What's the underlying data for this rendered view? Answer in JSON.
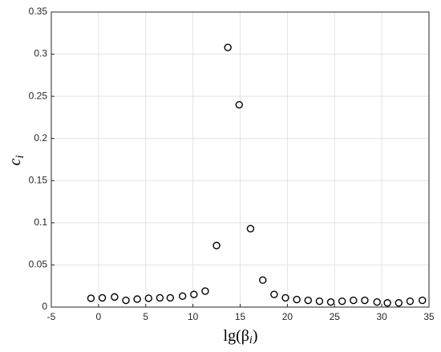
{
  "chart_data": {
    "type": "scatter",
    "xlabel": [
      "lg(β",
      "i",
      ")"
    ],
    "ylabel": [
      "c",
      "i"
    ],
    "x": [
      -0.8,
      0.4,
      1.7,
      2.9,
      4.1,
      5.3,
      6.5,
      7.6,
      8.9,
      10.1,
      11.3,
      12.5,
      13.7,
      14.9,
      16.1,
      17.4,
      18.6,
      19.8,
      21.0,
      22.2,
      23.4,
      24.6,
      25.8,
      27.0,
      28.2,
      29.5,
      30.6,
      31.8,
      33.0,
      34.3
    ],
    "values": [
      0.0105,
      0.011,
      0.012,
      0.008,
      0.0095,
      0.0105,
      0.011,
      0.011,
      0.013,
      0.015,
      0.019,
      0.073,
      0.308,
      0.24,
      0.093,
      0.032,
      0.015,
      0.011,
      0.009,
      0.008,
      0.007,
      0.006,
      0.007,
      0.008,
      0.008,
      0.006,
      0.005,
      0.005,
      0.007,
      0.008
    ],
    "color": "#000000",
    "xlim": [
      -5,
      35
    ],
    "xticks": [
      -5,
      0,
      5,
      10,
      15,
      20,
      25,
      30,
      35
    ],
    "ylim": [
      0,
      0.35
    ],
    "yticks": [
      0,
      0.05,
      0.1,
      0.15,
      0.2,
      0.25,
      0.3,
      0.35
    ],
    "grid": true
  }
}
